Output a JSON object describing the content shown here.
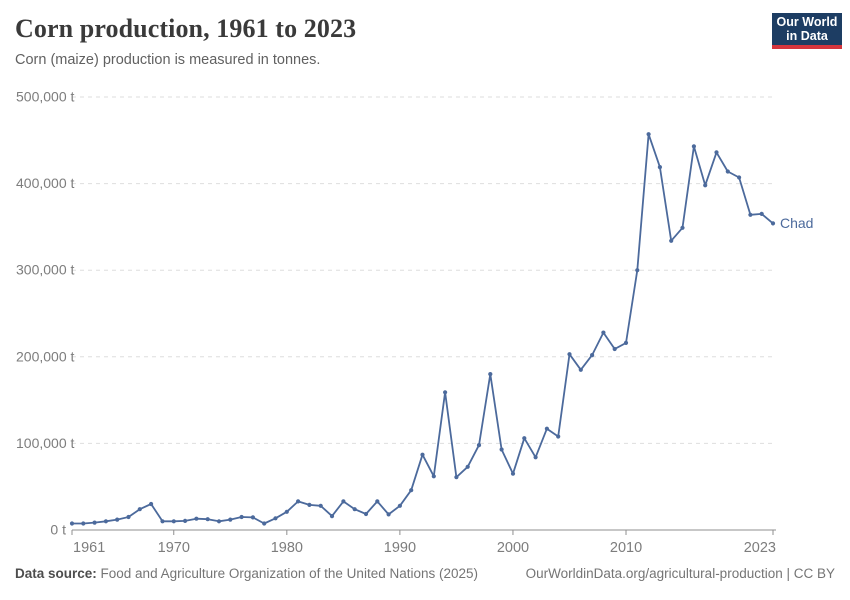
{
  "header": {
    "title": "Corn production, 1961 to 2023",
    "subtitle": "Corn (maize) production is measured in tonnes."
  },
  "logo": {
    "line1": "Our World",
    "line2": "in Data",
    "bg_color": "#1d3d63",
    "accent_color": "#d5353d"
  },
  "chart_data": {
    "type": "line",
    "title": "Corn production, 1961 to 2023",
    "unit": "tonnes",
    "xlabel": "",
    "ylabel": "",
    "ylim": [
      0,
      500000
    ],
    "y_ticks": [
      0,
      100000,
      200000,
      300000,
      400000,
      500000
    ],
    "y_tick_labels": [
      "0 t",
      "100,000 t",
      "200,000 t",
      "300,000 t",
      "400,000 t",
      "500,000 t"
    ],
    "x_ticks": [
      1961,
      1970,
      1980,
      1990,
      2000,
      2010,
      2023
    ],
    "grid": "horizontal-dashed",
    "legend_position": "end-of-line-label",
    "x": [
      1961,
      1962,
      1963,
      1964,
      1965,
      1966,
      1967,
      1968,
      1969,
      1970,
      1971,
      1972,
      1973,
      1974,
      1975,
      1976,
      1977,
      1978,
      1979,
      1980,
      1981,
      1982,
      1983,
      1984,
      1985,
      1986,
      1987,
      1988,
      1989,
      1990,
      1991,
      1992,
      1993,
      1994,
      1995,
      1996,
      1997,
      1998,
      1999,
      2000,
      2001,
      2002,
      2003,
      2004,
      2005,
      2006,
      2007,
      2008,
      2009,
      2010,
      2011,
      2012,
      2013,
      2014,
      2015,
      2016,
      2017,
      2018,
      2019,
      2020,
      2021,
      2022,
      2023
    ],
    "series": [
      {
        "name": "Chad",
        "color": "#4C6A9C",
        "values": [
          7500,
          7500,
          8500,
          10000,
          12000,
          15000,
          24000,
          30000,
          10000,
          10000,
          10500,
          13000,
          12500,
          10000,
          12000,
          15000,
          14500,
          7500,
          13500,
          21000,
          33000,
          29000,
          28000,
          16000,
          33000,
          24000,
          18500,
          33000,
          18000,
          28000,
          46000,
          87000,
          62000,
          159000,
          61000,
          73000,
          98000,
          180000,
          93000,
          65000,
          106000,
          84000,
          117000,
          108000,
          203000,
          185000,
          202000,
          228000,
          209000,
          216000,
          300000,
          457000,
          419000,
          334000,
          349000,
          443000,
          398000,
          436000,
          414000,
          407000,
          364000,
          365000,
          354000
        ]
      }
    ]
  },
  "axis_style": {
    "grid_color": "#dedede",
    "axis_color": "#8f8f8f",
    "tick_label_color": "#7d7d7d"
  },
  "footer": {
    "datasource_label": "Data source:",
    "datasource_text": " Food and Agriculture Organization of the United Nations (2025)",
    "credit": "OurWorldinData.org/agricultural-production | CC BY"
  }
}
